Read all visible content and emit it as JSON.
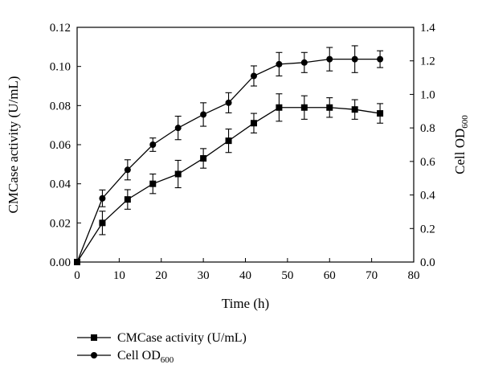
{
  "chart_data": {
    "type": "line",
    "title": "",
    "x": [
      0,
      6,
      12,
      18,
      24,
      30,
      36,
      42,
      48,
      54,
      60,
      66,
      72
    ],
    "xlabel": "Time (h)",
    "xlim": [
      0,
      80
    ],
    "xticks": [
      0,
      10,
      20,
      30,
      40,
      50,
      60,
      70,
      80
    ],
    "ylabel_left": "CMCase activity (U/mL)",
    "ylim_left": [
      0,
      0.12
    ],
    "yticks_left": [
      0.0,
      0.02,
      0.04,
      0.06,
      0.08,
      0.1,
      0.12
    ],
    "ylabel_right": {
      "text": "Cell OD",
      "subscript": "600"
    },
    "ylim_right": [
      0,
      1.4
    ],
    "yticks_right": [
      0.0,
      0.2,
      0.4,
      0.6,
      0.8,
      1.0,
      1.2,
      1.4
    ],
    "series": [
      {
        "name": "CMCase activity (U/mL)",
        "legend_main": "CMCase activity (U/mL)",
        "legend_sub": "",
        "axis": "left",
        "marker": "square",
        "values": [
          0.0,
          0.02,
          0.032,
          0.04,
          0.045,
          0.053,
          0.062,
          0.071,
          0.079,
          0.079,
          0.079,
          0.078,
          0.076
        ],
        "errors": [
          0.0,
          0.006,
          0.005,
          0.005,
          0.007,
          0.005,
          0.006,
          0.005,
          0.007,
          0.006,
          0.005,
          0.005,
          0.005
        ]
      },
      {
        "name": "Cell OD600",
        "legend_main": "Cell OD",
        "legend_sub": "600",
        "axis": "right",
        "marker": "circle",
        "values": [
          0.0,
          0.38,
          0.55,
          0.7,
          0.8,
          0.88,
          0.95,
          1.11,
          1.18,
          1.19,
          1.21,
          1.21,
          1.21
        ],
        "errors": [
          0.0,
          0.05,
          0.06,
          0.04,
          0.07,
          0.07,
          0.06,
          0.06,
          0.07,
          0.06,
          0.07,
          0.08,
          0.05
        ]
      }
    ],
    "legend_position": "bottom-left"
  }
}
